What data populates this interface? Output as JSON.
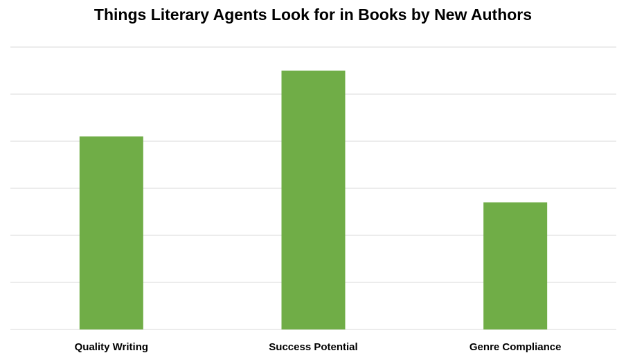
{
  "chart_data": {
    "type": "bar",
    "title": "Things Literary Agents Look for in Books by New Authors",
    "categories": [
      "Quality Writing",
      "Success Potential",
      "Genre Compliance"
    ],
    "values": [
      4.1,
      5.5,
      2.7
    ],
    "ylim": [
      0,
      6
    ],
    "grid": true,
    "bar_color": "#70ad47",
    "grid_color": "#d9d9d9"
  }
}
